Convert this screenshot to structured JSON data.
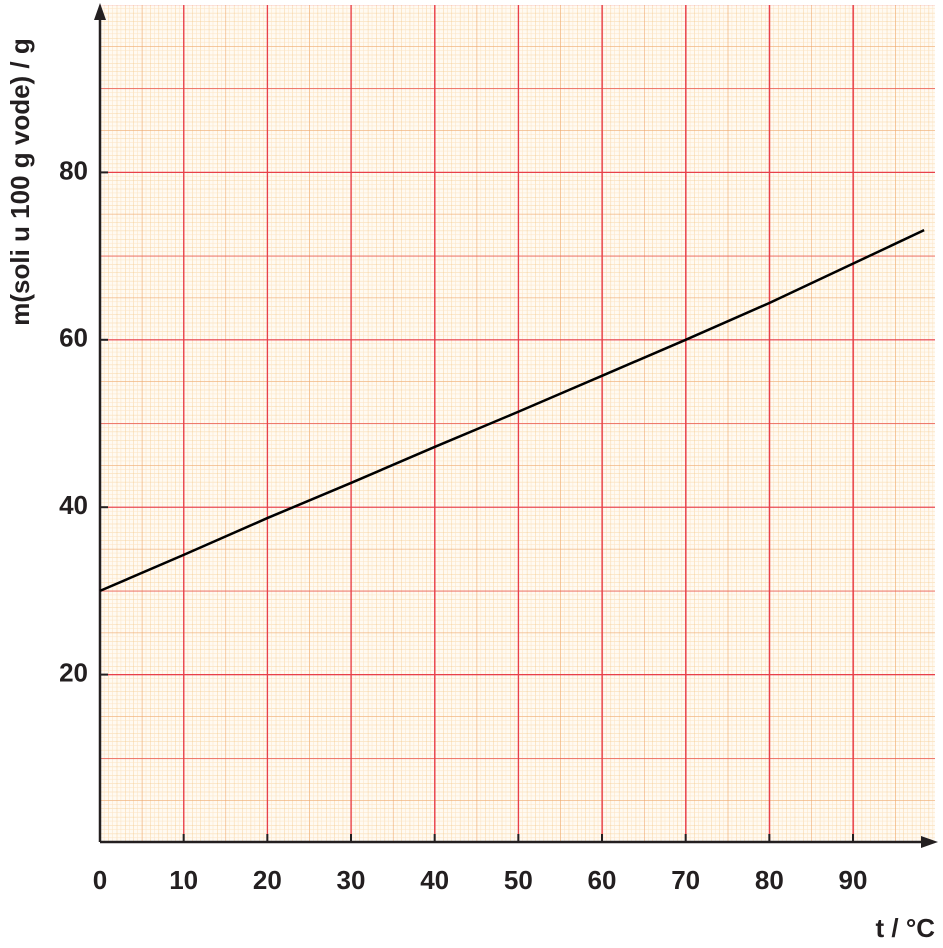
{
  "chart_data": {
    "type": "line",
    "x_label": "t / °C",
    "y_label": "m(soli u 100 g vode) / g",
    "x": [
      0,
      10,
      20,
      30,
      40,
      50,
      60,
      70,
      80,
      90,
      98.5
    ],
    "series": [
      {
        "color": "#000000",
        "values": [
          30,
          34.3,
          38.7,
          42.9,
          47.2,
          51.4,
          55.7,
          60,
          64.4,
          69.1,
          73.1
        ]
      }
    ],
    "xlim": [
      0,
      99.8
    ],
    "ylim": [
      0,
      100
    ],
    "xticks": [
      0,
      10,
      20,
      30,
      40,
      50,
      60,
      70,
      80,
      90
    ],
    "yticks": [
      20,
      40,
      60,
      80
    ],
    "grid": true
  }
}
